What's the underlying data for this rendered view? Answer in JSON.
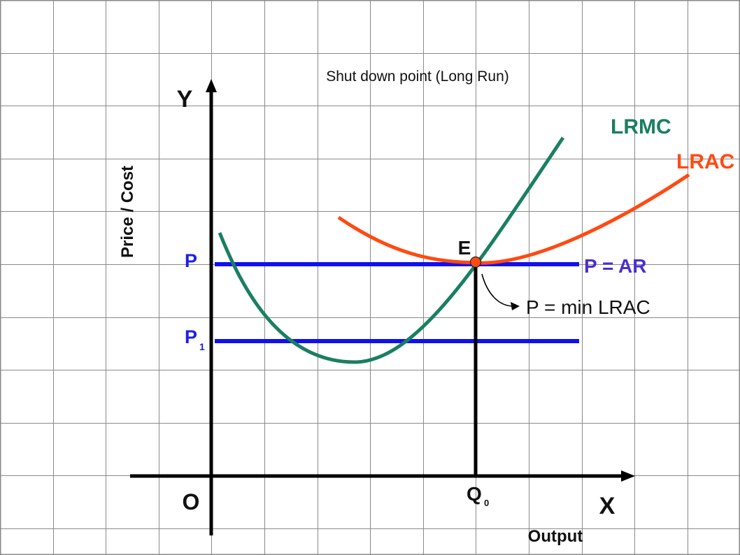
{
  "title": "Shut down point (Long Run)",
  "axes": {
    "y_label": "Y",
    "x_label": "X",
    "origin_label": "O",
    "y_title": "Price / Cost",
    "x_title": "Output"
  },
  "curves": {
    "lrmc": {
      "label": "LRMC",
      "color": "#1a7f62"
    },
    "lrac": {
      "label": "LRAC",
      "color": "#ff4a12"
    }
  },
  "price_lines": {
    "p": {
      "label": "P",
      "tag": "P = AR",
      "color": "#1010f0"
    },
    "p1": {
      "label": "P",
      "subscript": "1",
      "color": "#1010f0"
    }
  },
  "equilibrium": {
    "point_label": "E",
    "q_label": "Q",
    "q_subscript": "0",
    "point_color": "#ff4a12",
    "annotation": "P = min LRAC"
  },
  "colors": {
    "grid": "#8a8a8a",
    "axis": "#000000",
    "p_label_color": "#2020e0",
    "ar_label_color": "#4b2fd0"
  }
}
